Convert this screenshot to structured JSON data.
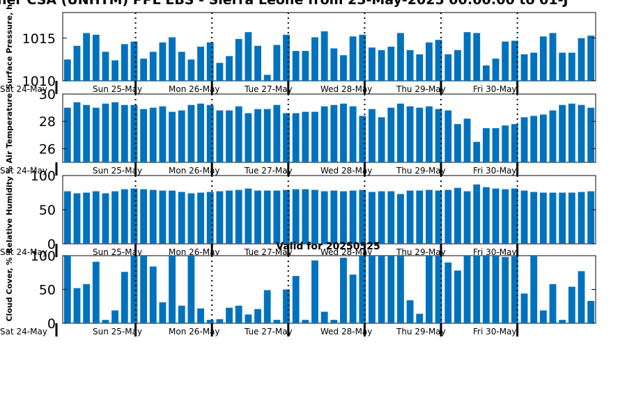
{
  "title": "ner CSA (UNHTM) PPL EBS - Sierra Leone from 25-May-2025 00:00:00 to 01-J",
  "valid_label": "Valid for 20250525",
  "colors": {
    "bar": "#0072bd",
    "axis": "#000000"
  },
  "chart_data": [
    {
      "type": "bar",
      "ylabel": "Surface Pressure, h",
      "ylim": [
        1010,
        1018
      ],
      "yticks": [
        1010,
        1015
      ],
      "x_tick_labels": [
        "Sat 24-May",
        "Sun 25-May",
        "Mon 26-May",
        "Tue 27-May",
        "Wed 28-May",
        "Thu 29-May",
        "Fri 30-May"
      ],
      "values": [
        1012.5,
        1014.1,
        1015.6,
        1015.4,
        1013.4,
        1012.4,
        1014.3,
        1014.6,
        1012.6,
        1013.4,
        1014.5,
        1015.1,
        1013.4,
        1012.5,
        1014.0,
        1014.5,
        1012.1,
        1012.9,
        1014.9,
        1015.7,
        1014.1,
        1010.7,
        1014.2,
        1015.4,
        1013.5,
        1013.5,
        1015.1,
        1015.8,
        1013.8,
        1013.0,
        1015.2,
        1015.4,
        1013.9,
        1013.6,
        1014.0,
        1015.6,
        1013.6,
        1013.1,
        1014.5,
        1014.8,
        1013.1,
        1013.6,
        1015.7,
        1015.6,
        1011.8,
        1012.6,
        1014.6,
        1014.7,
        1013.1,
        1013.3,
        1015.2,
        1015.6,
        1013.3,
        1013.3,
        1015.0,
        1015.3
      ]
    },
    {
      "type": "bar",
      "ylabel": "Air Temperature",
      "ylim": [
        25,
        30
      ],
      "yticks": [
        26,
        28,
        30
      ],
      "x_tick_labels": [
        "Sat 24-May",
        "Sun 25-May",
        "Mon 26-May",
        "Tue 27-May",
        "Wed 28-May",
        "Thu 29-May",
        "Fri 30-May"
      ],
      "values": [
        29.0,
        29.4,
        29.2,
        29.0,
        29.3,
        29.4,
        29.2,
        29.2,
        28.9,
        29.0,
        29.1,
        28.7,
        28.8,
        29.2,
        29.3,
        29.2,
        28.8,
        28.8,
        29.1,
        28.6,
        28.9,
        28.9,
        29.2,
        28.6,
        28.6,
        28.7,
        28.7,
        29.1,
        29.2,
        29.3,
        29.1,
        28.4,
        28.9,
        28.3,
        29.0,
        29.3,
        29.1,
        29.0,
        29.1,
        28.9,
        28.8,
        27.8,
        28.2,
        26.5,
        27.5,
        27.5,
        27.7,
        27.8,
        28.3,
        28.4,
        28.5,
        28.8,
        29.2,
        29.3,
        29.2,
        29.0
      ]
    },
    {
      "type": "bar",
      "ylabel": "Relative Humidity %",
      "ylim": [
        0,
        100
      ],
      "yticks": [
        0,
        50,
        100
      ],
      "x_tick_labels": [
        "Sat 24-May",
        "Sun 25-May",
        "Mon 26-May",
        "Tue 27-May",
        "Wed 28-May",
        "Thu 29-May",
        "Fri 30-May"
      ],
      "values": [
        77,
        74,
        75,
        77,
        74,
        77,
        80,
        81,
        80,
        79,
        78,
        78,
        76,
        74,
        75,
        76,
        77,
        78,
        79,
        81,
        78,
        78,
        78,
        79,
        80,
        80,
        79,
        77,
        78,
        77,
        78,
        79,
        76,
        77,
        77,
        73,
        78,
        78,
        79,
        78,
        79,
        82,
        77,
        87,
        83,
        81,
        80,
        81,
        78,
        76,
        75,
        75,
        75,
        75,
        76,
        77
      ]
    },
    {
      "type": "bar",
      "ylabel": "Cloud Cover, %",
      "ylim": [
        0,
        100
      ],
      "yticks": [
        0,
        50,
        100
      ],
      "x_tick_labels": [
        "Sat 24-May",
        "Sun 25-May",
        "Mon 26-May",
        "Tue 27-May",
        "Wed 28-May",
        "Thu 29-May",
        "Fri 30-May"
      ],
      "values": [
        100,
        52,
        58,
        91,
        5,
        19,
        76,
        100,
        100,
        84,
        31,
        100,
        26,
        100,
        22,
        5,
        6,
        23,
        26,
        13,
        21,
        49,
        5,
        50,
        70,
        5,
        93,
        17,
        5,
        97,
        72,
        100,
        100,
        100,
        100,
        100,
        34,
        14,
        100,
        100,
        90,
        78,
        100,
        100,
        100,
        100,
        98,
        99,
        44,
        100,
        19,
        58,
        5,
        54,
        77,
        33
      ]
    }
  ]
}
